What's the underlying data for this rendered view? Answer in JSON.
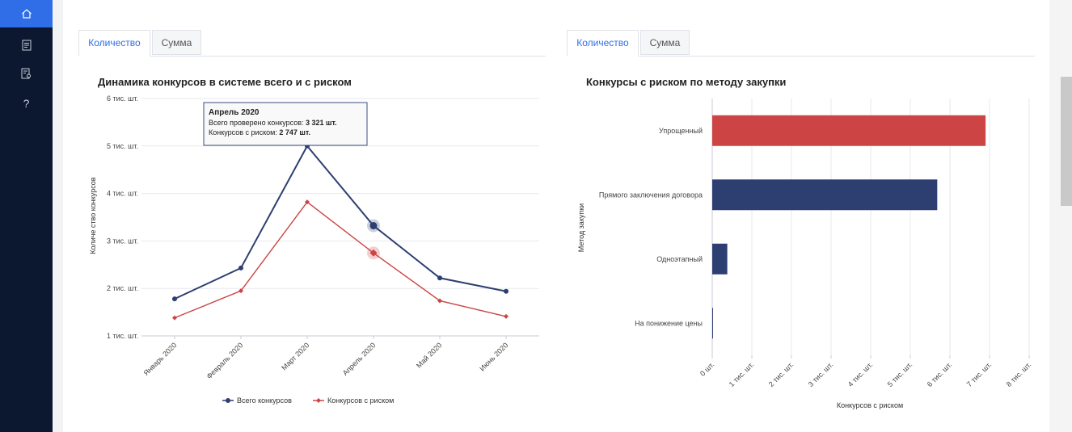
{
  "sidebar": {
    "items": [
      {
        "icon": "home-icon",
        "active": true
      },
      {
        "icon": "document-list-icon",
        "active": false
      },
      {
        "icon": "report-icon",
        "active": false
      },
      {
        "icon": "help-icon",
        "label": "?",
        "active": false
      }
    ]
  },
  "left_panel": {
    "tabs": [
      {
        "label": "Количество",
        "active": true
      },
      {
        "label": "Сумма",
        "active": false
      }
    ],
    "title": "Динамика конкурсов в системе всего и с риском",
    "tooltip": {
      "title": "Апрель 2020",
      "line1_label": "Всего проверено конкурсов: ",
      "line1_value": "3 321 шт.",
      "line2_label": "Конкурсов с риском: ",
      "line2_value": "2 747 шт."
    }
  },
  "right_panel": {
    "tabs": [
      {
        "label": "Количество",
        "active": true
      },
      {
        "label": "Сумма",
        "active": false
      }
    ],
    "title": "Конкурсы с риском по методу закупки"
  },
  "colors": {
    "navy": "#2d3e70",
    "red": "#cc4444",
    "accent": "#2f6ee6",
    "sidebar": "#0b1830"
  },
  "chart_data": [
    {
      "type": "line",
      "title": "Динамика конкурсов в системе всего и с риском",
      "xlabel": "",
      "ylabel": "Количе ство конкурсов",
      "categories": [
        "Январь 2020",
        "Февраль 2020",
        "Март 2020",
        "Апрель 2020",
        "Май 2020",
        "Июнь 2020"
      ],
      "ylim": [
        1000,
        6000
      ],
      "yticks": [
        1000,
        2000,
        3000,
        4000,
        5000,
        6000
      ],
      "ytick_labels": [
        "1 тис. шт.",
        "2 тис. шт.",
        "3 тис. шт.",
        "4 тис. шт.",
        "5 тис. шт.",
        "6 тис. шт."
      ],
      "series": [
        {
          "name": "Всего конкурсов",
          "color": "#2d3e70",
          "marker": "circle",
          "values": [
            1780,
            2430,
            5000,
            3321,
            2220,
            1940
          ]
        },
        {
          "name": "Конкурсов с риском",
          "color": "#cc4444",
          "marker": "diamond",
          "values": [
            1380,
            1950,
            3820,
            2747,
            1740,
            1410
          ]
        }
      ],
      "highlight_index": 3,
      "legend": "bottom",
      "grid": true
    },
    {
      "type": "bar",
      "orientation": "horizontal",
      "title": "Конкурсы с риском по методу закупки",
      "xlabel": "Конкурсов с риском",
      "ylabel": "Метод закупки",
      "categories": [
        "Упрощенный",
        "Прямого заключения договора",
        "Одноэтапный",
        "На понижение цены"
      ],
      "values": [
        6900,
        5680,
        380,
        10
      ],
      "colors": [
        "#cc4444",
        "#2d3e70",
        "#2d3e70",
        "#2d3e70"
      ],
      "xlim": [
        0,
        8000
      ],
      "xticks": [
        0,
        1000,
        2000,
        3000,
        4000,
        5000,
        6000,
        7000,
        8000
      ],
      "xtick_labels": [
        "0 шт.",
        "1 тис. шт.",
        "2 тис. шт.",
        "3 тис. шт.",
        "4 тис. шт.",
        "5 тис. шт.",
        "6 тис. шт.",
        "7 тис. шт.",
        "8 тис. шт."
      ],
      "grid": true
    }
  ]
}
